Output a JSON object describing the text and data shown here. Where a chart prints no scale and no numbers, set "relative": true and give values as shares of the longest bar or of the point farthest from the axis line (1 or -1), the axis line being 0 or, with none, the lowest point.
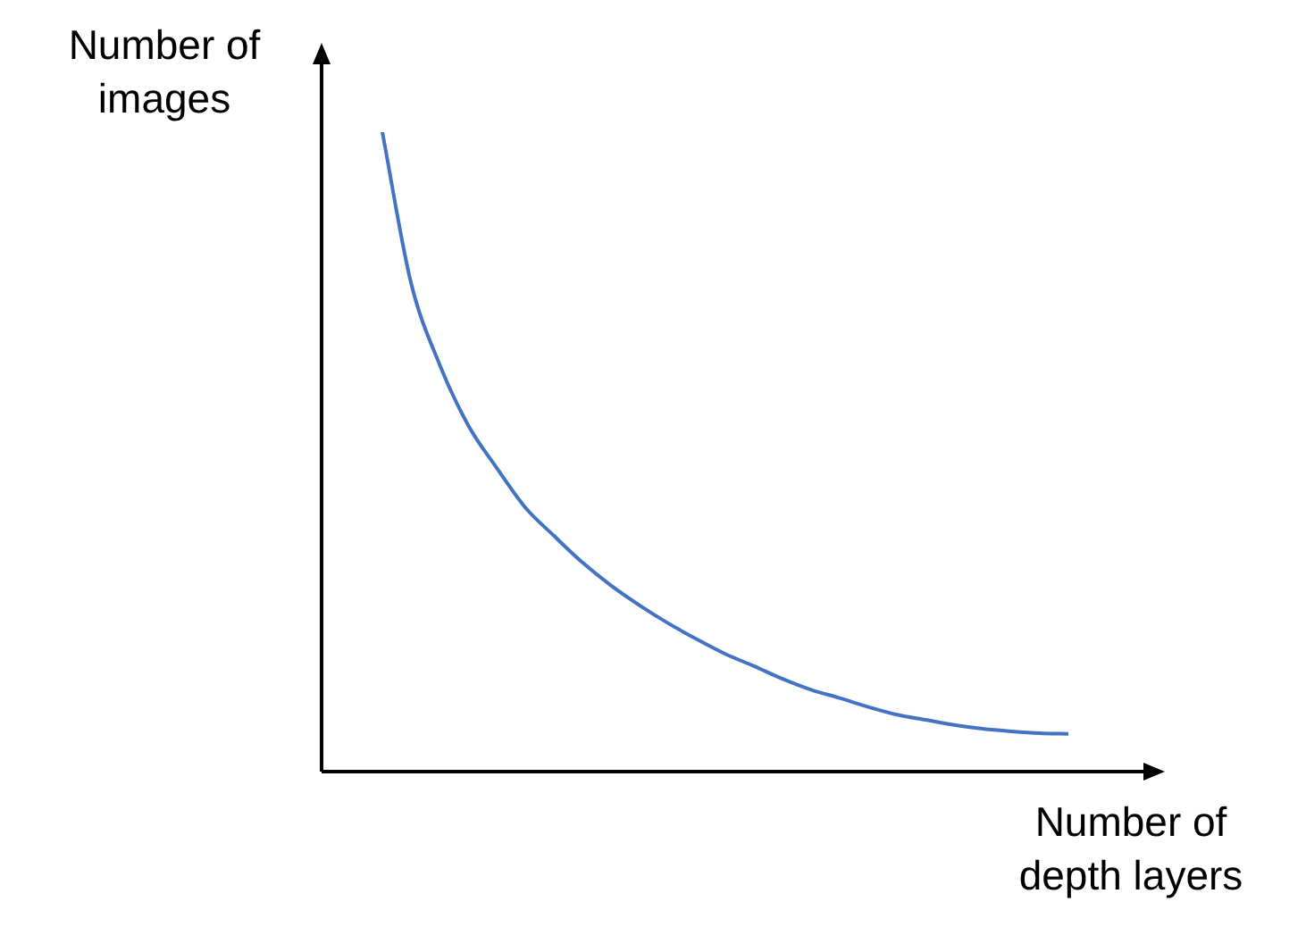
{
  "chart_data": {
    "type": "line",
    "relative": true,
    "xlabel": "Number of depth layers",
    "ylabel": "Number of images",
    "categories": [
      null,
      null,
      null,
      null,
      null,
      null,
      null,
      null,
      null,
      null,
      null,
      null,
      null,
      null,
      null,
      null,
      null,
      null,
      null,
      null,
      null,
      null,
      null,
      null,
      null
    ],
    "series": [
      {
        "color": "#4472c4",
        "values": [
          1,
          0.765,
          0.637,
          0.542,
          0.475,
          0.413,
          0.369,
          0.327,
          0.291,
          0.26,
          0.232,
          0.207,
          0.184,
          0.165,
          0.145,
          0.128,
          0.115,
          0.101,
          0.089,
          0.081,
          0.073,
          0.067,
          0.063,
          0.06,
          0.059
        ]
      }
    ],
    "marker": "none",
    "legend": false,
    "grid": false
  }
}
